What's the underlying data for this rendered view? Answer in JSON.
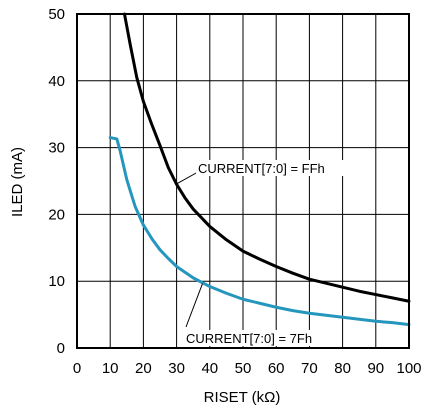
{
  "chart_data": {
    "type": "line",
    "xlabel": "RISET (kΩ)",
    "ylabel": "ILED (mA)",
    "xlim": [
      0,
      100
    ],
    "ylim": [
      0,
      50
    ],
    "x_ticks": [
      0,
      10,
      20,
      30,
      40,
      50,
      60,
      70,
      80,
      90,
      100
    ],
    "y_ticks": [
      0,
      10,
      20,
      30,
      40,
      50
    ],
    "x_tick_labels": [
      "0",
      "10",
      "20",
      "30",
      "40",
      "50",
      "60",
      "70",
      "80",
      "90",
      "100"
    ],
    "y_tick_labels": [
      "0",
      "10",
      "20",
      "30",
      "40",
      "50"
    ],
    "grid": true,
    "series": [
      {
        "name": "CURRENT[7:0] = FFh",
        "color": "#000000",
        "x": [
          14.3,
          16,
          18,
          20,
          22.5,
          25,
          27.5,
          30,
          32.5,
          35,
          40,
          45,
          50,
          55,
          60,
          65,
          70,
          75,
          80,
          85,
          90,
          95,
          100
        ],
        "y": [
          50,
          45.5,
          40.5,
          36.9,
          33.5,
          30.3,
          27,
          24.5,
          22.5,
          20.8,
          18.2,
          16.2,
          14.5,
          13.3,
          12.2,
          11.2,
          10.3,
          9.7,
          9.1,
          8.5,
          8,
          7.5,
          7
        ]
      },
      {
        "name": "CURRENT[7:0] = 7Fh",
        "color": "#2596be",
        "x": [
          10,
          12,
          13,
          15,
          17.5,
          20,
          22.5,
          25,
          27.5,
          30,
          35,
          40,
          45,
          50,
          55,
          60,
          65,
          70,
          75,
          80,
          85,
          90,
          95,
          100
        ],
        "y": [
          31.5,
          31.3,
          29.5,
          25.2,
          21.2,
          18.4,
          16.4,
          14.7,
          13.4,
          12.2,
          10.5,
          9.2,
          8.2,
          7.3,
          6.7,
          6.1,
          5.6,
          5.2,
          4.9,
          4.6,
          4.3,
          4.0,
          3.8,
          3.5
        ]
      }
    ]
  }
}
